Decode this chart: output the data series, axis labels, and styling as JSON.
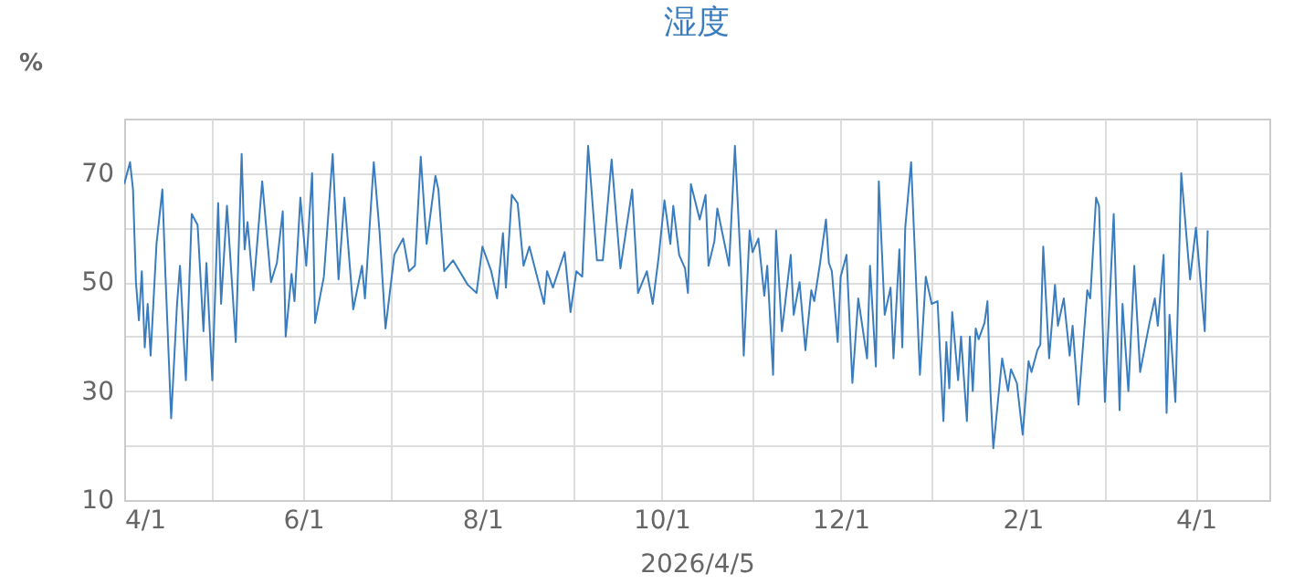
{
  "chart_data": {
    "type": "line",
    "title": "湿度",
    "xlabel": "2026/4/5",
    "ylabel": "%",
    "x": [
      "2025-04-01",
      "2025-04-03",
      "2025-04-04",
      "2025-04-05",
      "2025-04-06",
      "2025-04-07",
      "2025-04-08",
      "2025-04-09",
      "2025-04-10",
      "2025-04-12",
      "2025-04-14",
      "2025-04-15",
      "2025-04-17",
      "2025-04-19",
      "2025-04-20",
      "2025-04-22",
      "2025-04-24",
      "2025-04-26",
      "2025-04-28",
      "2025-04-29",
      "2025-05-01",
      "2025-05-03",
      "2025-05-04",
      "2025-05-06",
      "2025-05-09",
      "2025-05-11",
      "2025-05-12",
      "2025-05-13",
      "2025-05-15",
      "2025-05-18",
      "2025-05-21",
      "2025-05-23",
      "2025-05-25",
      "2025-05-26",
      "2025-05-28",
      "2025-05-29",
      "2025-05-31",
      "2025-06-02",
      "2025-06-04",
      "2025-06-05",
      "2025-06-08",
      "2025-06-11",
      "2025-06-13",
      "2025-06-15",
      "2025-06-18",
      "2025-06-21",
      "2025-06-22",
      "2025-06-25",
      "2025-06-27",
      "2025-06-29",
      "2025-07-02",
      "2025-07-05",
      "2025-07-07",
      "2025-07-09",
      "2025-07-11",
      "2025-07-13",
      "2025-07-16",
      "2025-07-17",
      "2025-07-19",
      "2025-07-22",
      "2025-07-27",
      "2025-07-30",
      "2025-08-01",
      "2025-08-04",
      "2025-08-06",
      "2025-08-08",
      "2025-08-09",
      "2025-08-11",
      "2025-08-13",
      "2025-08-15",
      "2025-08-17",
      "2025-08-22",
      "2025-08-23",
      "2025-08-25",
      "2025-08-29",
      "2025-08-31",
      "2025-09-02",
      "2025-09-04",
      "2025-09-06",
      "2025-09-09",
      "2025-09-11",
      "2025-09-14",
      "2025-09-17",
      "2025-09-21",
      "2025-09-23",
      "2025-09-26",
      "2025-09-28",
      "2025-09-30",
      "2025-10-02",
      "2025-10-04",
      "2025-10-05",
      "2025-10-07",
      "2025-10-09",
      "2025-10-10",
      "2025-10-11",
      "2025-10-14",
      "2025-10-16",
      "2025-10-17",
      "2025-10-19",
      "2025-10-20",
      "2025-10-24",
      "2025-10-26",
      "2025-10-28",
      "2025-10-29",
      "2025-10-31",
      "2025-11-01",
      "2025-11-03",
      "2025-11-05",
      "2025-11-06",
      "2025-11-08",
      "2025-11-09",
      "2025-11-11",
      "2025-11-14",
      "2025-11-15",
      "2025-11-17",
      "2025-11-19",
      "2025-11-21",
      "2025-11-22",
      "2025-11-24",
      "2025-11-26",
      "2025-11-27",
      "2025-11-28",
      "2025-11-30",
      "2025-12-01",
      "2025-12-03",
      "2025-12-05",
      "2025-12-07",
      "2025-12-10",
      "2025-12-11",
      "2025-12-13",
      "2025-12-14",
      "2025-12-16",
      "2025-12-18",
      "2025-12-19",
      "2025-12-21",
      "2025-12-22",
      "2025-12-23",
      "2025-12-25",
      "2025-12-28",
      "2025-12-30",
      "2026-01-01",
      "2026-01-03",
      "2026-01-05",
      "2026-01-06",
      "2026-01-07",
      "2026-01-08",
      "2026-01-10",
      "2026-01-11",
      "2026-01-13",
      "2026-01-14",
      "2026-01-15",
      "2026-01-16",
      "2026-01-17",
      "2026-01-19",
      "2026-01-20",
      "2026-01-21",
      "2026-01-22",
      "2026-01-25",
      "2026-01-27",
      "2026-01-28",
      "2026-01-30",
      "2026-02-01",
      "2026-02-03",
      "2026-02-04",
      "2026-02-06",
      "2026-02-07",
      "2026-02-08",
      "2026-02-10",
      "2026-02-12",
      "2026-02-13",
      "2026-02-15",
      "2026-02-17",
      "2026-02-18",
      "2026-02-20",
      "2026-02-23",
      "2026-02-24",
      "2026-02-26",
      "2026-02-27",
      "2026-03-01",
      "2026-03-04",
      "2026-03-06",
      "2026-03-07",
      "2026-03-09",
      "2026-03-11",
      "2026-03-13",
      "2026-03-16",
      "2026-03-18",
      "2026-03-19",
      "2026-03-21",
      "2026-03-22",
      "2026-03-23",
      "2026-03-25",
      "2026-03-27",
      "2026-03-30",
      "2026-04-01",
      "2026-04-04",
      "2026-04-05"
    ],
    "series": [
      {
        "color": "#3a7dbf",
        "values": [
          68,
          72,
          67,
          50,
          43,
          52,
          38,
          46,
          36.5,
          57,
          67,
          52,
          25,
          46,
          53,
          32,
          62.5,
          60.5,
          41,
          53.5,
          32,
          64.5,
          46,
          64,
          39,
          73.5,
          56,
          61,
          48.5,
          68.5,
          50,
          53.5,
          63,
          40,
          51.5,
          46.5,
          65.5,
          53,
          70,
          42.5,
          51,
          73.5,
          50.5,
          65.5,
          45,
          53,
          47,
          72,
          59,
          41.5,
          55,
          58,
          52,
          53,
          73,
          57,
          69.5,
          67,
          52,
          54,
          49.5,
          48,
          56.5,
          52,
          47,
          59,
          49,
          66,
          64.5,
          53,
          56.5,
          46,
          52,
          49,
          55.5,
          44.5,
          52,
          51,
          75,
          54,
          54,
          72.5,
          52.5,
          67,
          48,
          52,
          46,
          54.5,
          65,
          57,
          64,
          55,
          52.5,
          48,
          68,
          61.5,
          66,
          53,
          57.5,
          63.5,
          53,
          75,
          53,
          36.5,
          59.5,
          55.5,
          58,
          47.5,
          53,
          33,
          59.5,
          41,
          55,
          44,
          50,
          37.5,
          48.5,
          46.5,
          53.5,
          61.5,
          53.5,
          52,
          39,
          51,
          55,
          31.5,
          47,
          36,
          53,
          34.5,
          68.5,
          44,
          49,
          36,
          56,
          38,
          60,
          72,
          33,
          51,
          46,
          46.5,
          24.5,
          39,
          30.5,
          44.5,
          32,
          40,
          24.5,
          40,
          30,
          41.5,
          39.5,
          42.5,
          46.5,
          30,
          19.5,
          36,
          30,
          34,
          31.5,
          22,
          35.5,
          33.5,
          37.5,
          38.5,
          56.5,
          36,
          49.5,
          42,
          47,
          36.5,
          42,
          27.5,
          48.5,
          47,
          65.5,
          64,
          28,
          62.5,
          26.5,
          46,
          30,
          53,
          33.5,
          42,
          47,
          42,
          55,
          26,
          44,
          28,
          70,
          50.5,
          60,
          41,
          59.5
        ]
      }
    ],
    "xlim": [
      "2025-04-01",
      "2026-04-26"
    ],
    "xticks": [
      {
        "value": "2025-04-01",
        "label": "4/1"
      },
      {
        "value": "2025-05-01",
        "label": null
      },
      {
        "value": "2025-06-01",
        "label": "6/1"
      },
      {
        "value": "2025-07-01",
        "label": null
      },
      {
        "value": "2025-08-01",
        "label": "8/1"
      },
      {
        "value": "2025-09-01",
        "label": null
      },
      {
        "value": "2025-10-01",
        "label": "10/1"
      },
      {
        "value": "2025-11-01",
        "label": null
      },
      {
        "value": "2025-12-01",
        "label": "12/1"
      },
      {
        "value": "2026-01-01",
        "label": null
      },
      {
        "value": "2026-02-01",
        "label": "2/1"
      },
      {
        "value": "2026-03-01",
        "label": null
      },
      {
        "value": "2026-04-01",
        "label": "4/1"
      }
    ],
    "ylim": [
      10,
      80
    ],
    "yticks": [
      10,
      {
        "value": 20,
        "label": null
      },
      30,
      {
        "value": 40,
        "label": null
      },
      50,
      {
        "value": 60,
        "label": null
      },
      70
    ],
    "grid": true,
    "line_style": "solid"
  }
}
